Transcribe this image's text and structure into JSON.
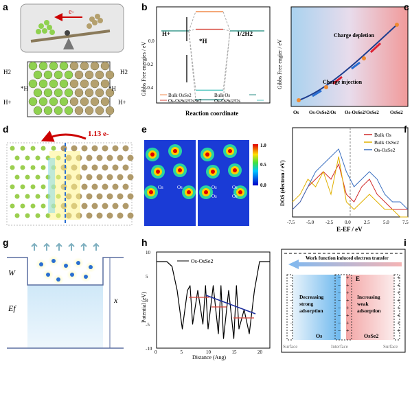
{
  "panel_labels": [
    "a",
    "b",
    "c",
    "d",
    "e",
    "f",
    "g",
    "h",
    "i"
  ],
  "panel_a": {
    "electron_label": "e-",
    "labels": [
      "H2",
      "H2",
      "*H",
      "*H",
      "H+",
      "H+"
    ]
  },
  "panel_b": {
    "ylabel": "Gibbs Free energies / eV",
    "xlabel": "Reaction coordinate",
    "states": [
      "H+",
      "*H",
      "1/2H2"
    ],
    "yticks": [
      "0.0",
      "-0.2",
      "-0.4"
    ],
    "legend": [
      "Bulk OsSe2",
      "Bulk Os",
      "Os-OsSe2/OsSe2",
      "Os-OsSe2/Os"
    ],
    "colors": {
      "bulk_osse2": "#f08a4b",
      "bulk_os": "#2a8c86",
      "os_osse2_osse2": "#d6443a",
      "os_osse2_os": "#55c7c0"
    }
  },
  "chart_data": [
    {
      "type": "line",
      "panel": "b",
      "title": "",
      "xlabel": "Reaction coordinate",
      "ylabel": "Gibbs Free energies / eV",
      "categories": [
        "H+",
        "*H",
        "1/2H2"
      ],
      "ylim": [
        -0.45,
        0.15
      ],
      "series": [
        {
          "name": "Bulk OsSe2",
          "values": [
            0,
            0.12,
            0
          ]
        },
        {
          "name": "Bulk Os",
          "values": [
            0,
            -0.43,
            0
          ]
        },
        {
          "name": "Os-OsSe2/OsSe2",
          "values": [
            0,
            0.01,
            0
          ]
        },
        {
          "name": "Os-OsSe2/Os",
          "values": [
            0,
            -0.37,
            0
          ]
        }
      ]
    },
    {
      "type": "line",
      "panel": "f",
      "title": "",
      "xlabel": "E-EF / eV",
      "ylabel": "DOS (electron / eV)",
      "xlim": [
        -7.5,
        7.5
      ],
      "x": [
        -7.5,
        -6.5,
        -5.5,
        -4.5,
        -3.5,
        -2.5,
        -1.5,
        -0.5,
        0.5,
        1.5,
        2.5,
        3.5,
        4.5,
        5.5,
        6.5,
        7.5
      ],
      "series": [
        {
          "name": "Bulk Os",
          "values": [
            1,
            2,
            4,
            5,
            6,
            5,
            7,
            3,
            2,
            4,
            5,
            3,
            2,
            1,
            1,
            1
          ]
        },
        {
          "name": "Bulk OsSe2",
          "values": [
            2,
            3,
            5,
            4,
            6,
            3,
            8,
            2,
            1,
            2,
            3,
            2,
            1,
            1,
            0,
            0
          ]
        },
        {
          "name": "Os-OsSe2",
          "values": [
            1,
            2,
            4,
            6,
            7,
            8,
            9,
            6,
            4,
            5,
            6,
            5,
            3,
            2,
            2,
            1
          ]
        }
      ]
    },
    {
      "type": "line",
      "panel": "h",
      "title": "",
      "xlabel": "Distance (Ang)",
      "ylabel": "Potential (eV)",
      "xlim": [
        0,
        22
      ],
      "ylim": [
        -10,
        10
      ],
      "series": [
        {
          "name": "Os-OsSe2",
          "x": [
            0,
            2,
            3,
            4,
            5,
            6,
            6.5,
            7,
            8,
            9,
            9.5,
            10,
            11,
            12,
            12.5,
            13,
            14,
            15,
            15.5,
            16,
            17,
            18,
            19,
            20,
            22
          ],
          "values": [
            8,
            8,
            7,
            2,
            -6,
            2,
            3,
            -5,
            2,
            -5,
            3,
            -6,
            3,
            -7,
            3,
            -8,
            2,
            -8,
            3,
            -6,
            -2,
            -7,
            2,
            8,
            8
          ]
        }
      ]
    }
  ],
  "panel_c": {
    "ylabel": "Gibbs Free engier / eV",
    "xticks": [
      "Os",
      "Os-OsSe2/Os",
      "Os-OsSe2/OsSe2",
      "OsSe2"
    ],
    "yticks": [
      "0.2",
      "0.0",
      "-0.2",
      "-0.4"
    ],
    "annotations": [
      "Charge depletion",
      "Charge injection"
    ]
  },
  "panel_d": {
    "charge_label": "1.13 e-"
  },
  "panel_e": {
    "colorbar": [
      "1.0",
      "0.5",
      "0.0"
    ],
    "atom_labels": [
      "Os",
      "Os",
      "Os",
      "Os",
      "Os",
      "Os"
    ]
  },
  "panel_f": {
    "ylabel": "DOS (electron / eV)",
    "xlabel": "E-EF / eV",
    "xticks": [
      "-7.5",
      "-5.0",
      "-2.5",
      "0.0",
      "2.5",
      "5.0",
      "7.5"
    ],
    "legend": [
      "Bulk Os",
      "Bulk OsSe2",
      "Os-OsSe2"
    ],
    "colors": {
      "bulk_os": "#d02a2a",
      "bulk_osse2": "#e0b000",
      "os_osse2": "#3a6fc0"
    }
  },
  "panel_g": {
    "labels": [
      "W",
      "Ef",
      "x"
    ]
  },
  "panel_h": {
    "legend": "Os-OsSe2",
    "xlabel": "Distance (Ang)",
    "ylabel": "Potential (eV)",
    "xticks": [
      "0",
      "5",
      "10",
      "15",
      "20"
    ],
    "yticks": [
      "10",
      "5",
      "0",
      "-5",
      "-10"
    ]
  },
  "panel_i": {
    "top_label": "Work function induced electron transfer",
    "left_text": "Decreasing strong adsorption",
    "right_text": "Increasing weak adsorption",
    "e_label": "E",
    "bottom": [
      "Surface",
      "Os",
      "Interface",
      "OsSe2",
      "Surface"
    ]
  }
}
